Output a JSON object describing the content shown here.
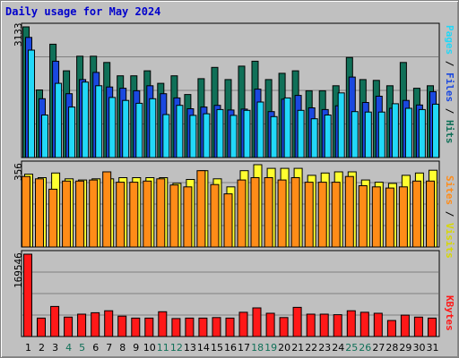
{
  "title": "Daily usage for May 2024",
  "colors": {
    "hits": "#107058",
    "files": "#1a48e0",
    "pages": "#22d8f8",
    "visits": "#ffff30",
    "sites": "#ff8c18",
    "kbytes": "#ff1818",
    "weekend_day_label": "#107058",
    "day_label": "#000080",
    "plot_bg": "#c0c0c0",
    "grid": "#808080"
  },
  "panels": {
    "top": {
      "max_label": "3133",
      "legend": [
        "Pages",
        "/",
        "Files",
        "/",
        "Hits"
      ],
      "legend_colors": [
        "#22d8f8",
        "#000000",
        "#1a48e0",
        "#000000",
        "#107058"
      ]
    },
    "middle": {
      "max_label": "356",
      "legend": [
        "Sites",
        "/",
        "Visits"
      ],
      "legend_colors": [
        "#ff8c18",
        "#000000",
        "#d8d800"
      ]
    },
    "bottom": {
      "max_label": "169546",
      "legend": [
        "KBytes"
      ],
      "legend_colors": [
        "#ff1818"
      ]
    }
  },
  "chart_data": [
    {
      "type": "bar",
      "title": "Daily usage for May 2024",
      "ylabel": "Pages / Files / Hits",
      "ylim": [
        0,
        3133
      ],
      "categories": [
        "1",
        "2",
        "3",
        "4",
        "5",
        "6",
        "7",
        "8",
        "9",
        "10",
        "11",
        "12",
        "13",
        "14",
        "15",
        "16",
        "17",
        "18",
        "19",
        "20",
        "21",
        "22",
        "23",
        "24",
        "25",
        "26",
        "27",
        "28",
        "29",
        "30",
        "31"
      ],
      "series": [
        {
          "name": "Hits",
          "values": [
            3133,
            1620,
            2717,
            2080,
            2429,
            2429,
            2280,
            1960,
            1960,
            2080,
            1780,
            1960,
            1510,
            1890,
            2160,
            1870,
            2190,
            2310,
            1870,
            2020,
            2080,
            1600,
            1600,
            1720,
            2400,
            1870,
            1850,
            1720,
            2280,
            1660,
            1720
          ]
        },
        {
          "name": "Files",
          "values": [
            2880,
            1410,
            2310,
            1530,
            1870,
            2040,
            1690,
            1660,
            1600,
            1720,
            1530,
            1430,
            1170,
            1210,
            1250,
            1140,
            1160,
            1640,
            1100,
            1400,
            1490,
            1190,
            1150,
            1240,
            1930,
            1320,
            1470,
            1180,
            1370,
            1260,
            1580
          ]
        },
        {
          "name": "Pages",
          "values": [
            2575,
            1020,
            1780,
            1210,
            1810,
            1720,
            1440,
            1370,
            1300,
            1410,
            1030,
            1250,
            1010,
            1050,
            1150,
            1010,
            1130,
            1330,
            980,
            1430,
            1130,
            930,
            1020,
            1550,
            1100,
            1090,
            1090,
            1290,
            1180,
            1150,
            1280
          ]
        }
      ]
    },
    {
      "type": "bar",
      "ylabel": "Sites / Visits",
      "ylim": [
        0,
        356
      ],
      "categories": [
        "1",
        "2",
        "3",
        "4",
        "5",
        "6",
        "7",
        "8",
        "9",
        "10",
        "11",
        "12",
        "13",
        "14",
        "15",
        "16",
        "17",
        "18",
        "19",
        "20",
        "21",
        "22",
        "23",
        "24",
        "25",
        "26",
        "27",
        "28",
        "29",
        "30",
        "31"
      ],
      "series": [
        {
          "name": "Visits",
          "values": [
            315,
            300,
            320,
            295,
            290,
            295,
            295,
            300,
            300,
            300,
            300,
            275,
            292,
            330,
            295,
            260,
            330,
            356,
            340,
            340,
            340,
            310,
            320,
            325,
            325,
            290,
            280,
            275,
            310,
            320,
            332
          ]
        },
        {
          "name": "Sites",
          "values": [
            305,
            295,
            250,
            285,
            285,
            290,
            325,
            280,
            280,
            285,
            295,
            268,
            260,
            330,
            270,
            230,
            290,
            300,
            300,
            290,
            300,
            280,
            280,
            280,
            305,
            265,
            260,
            255,
            260,
            285,
            285
          ]
        }
      ]
    },
    {
      "type": "bar",
      "ylabel": "KBytes",
      "ylim": [
        0,
        169546
      ],
      "categories": [
        "1",
        "2",
        "3",
        "4",
        "5",
        "6",
        "7",
        "8",
        "9",
        "10",
        "11",
        "12",
        "13",
        "14",
        "15",
        "16",
        "17",
        "18",
        "19",
        "20",
        "21",
        "22",
        "23",
        "24",
        "25",
        "26",
        "27",
        "28",
        "29",
        "30",
        "31"
      ],
      "series": [
        {
          "name": "KBytes",
          "values": [
            169546,
            38000,
            62000,
            40000,
            46000,
            49000,
            53000,
            42000,
            38000,
            38000,
            51000,
            37000,
            38000,
            38000,
            39000,
            38000,
            50000,
            59000,
            48000,
            39000,
            60000,
            46000,
            46000,
            45000,
            53000,
            50000,
            48000,
            33000,
            44000,
            40000,
            38000
          ]
        }
      ]
    }
  ]
}
